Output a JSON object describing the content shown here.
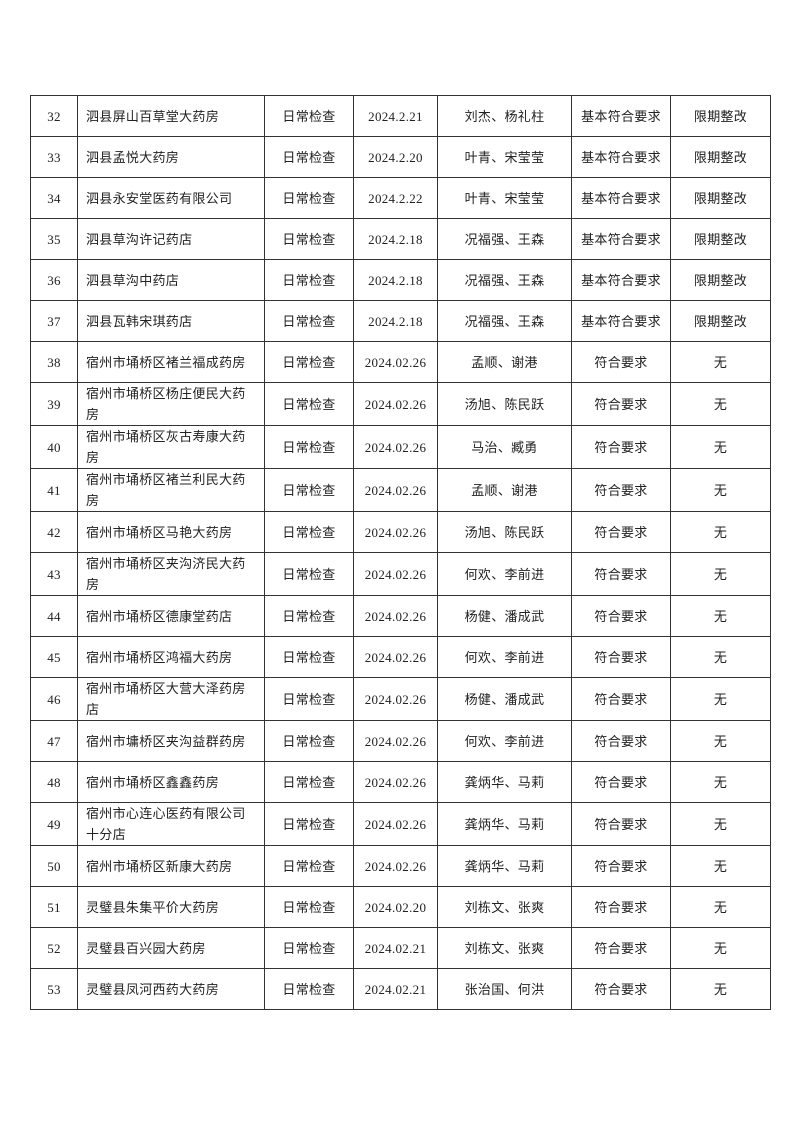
{
  "rows": [
    {
      "no": "32",
      "name": "泗县屏山百草堂大药房",
      "type": "日常检查",
      "date": "2024.2.21",
      "inspectors": "刘杰、杨礼柱",
      "result": "基本符合要求",
      "action": "限期整改"
    },
    {
      "no": "33",
      "name": "泗县孟悦大药房",
      "type": "日常检查",
      "date": "2024.2.20",
      "inspectors": "叶青、宋莹莹",
      "result": "基本符合要求",
      "action": "限期整改"
    },
    {
      "no": "34",
      "name": "泗县永安堂医药有限公司",
      "type": "日常检查",
      "date": "2024.2.22",
      "inspectors": "叶青、宋莹莹",
      "result": "基本符合要求",
      "action": "限期整改"
    },
    {
      "no": "35",
      "name": "泗县草沟许记药店",
      "type": "日常检查",
      "date": "2024.2.18",
      "inspectors": "况福强、王森",
      "result": "基本符合要求",
      "action": "限期整改"
    },
    {
      "no": "36",
      "name": "泗县草沟中药店",
      "type": "日常检查",
      "date": "2024.2.18",
      "inspectors": "况福强、王森",
      "result": "基本符合要求",
      "action": "限期整改"
    },
    {
      "no": "37",
      "name": "泗县瓦韩宋琪药店",
      "type": "日常检查",
      "date": "2024.2.18",
      "inspectors": "况福强、王森",
      "result": "基本符合要求",
      "action": "限期整改"
    },
    {
      "no": "38",
      "name": "宿州市埇桥区褚兰福成药房",
      "type": "日常检查",
      "date": "2024.02.26",
      "inspectors": "孟顺、谢港",
      "result": "符合要求",
      "action": "无"
    },
    {
      "no": "39",
      "name": "宿州市埇桥区杨庄便民大药房",
      "type": "日常检查",
      "date": "2024.02.26",
      "inspectors": "汤旭、陈民跃",
      "result": "符合要求",
      "action": "无"
    },
    {
      "no": "40",
      "name": "宿州市埇桥区灰古寿康大药房",
      "type": "日常检查",
      "date": "2024.02.26",
      "inspectors": "马治、臧勇",
      "result": "符合要求",
      "action": "无"
    },
    {
      "no": "41",
      "name": "宿州市埇桥区褚兰利民大药房",
      "type": "日常检查",
      "date": "2024.02.26",
      "inspectors": "孟顺、谢港",
      "result": "符合要求",
      "action": "无"
    },
    {
      "no": "42",
      "name": "宿州市埇桥区马艳大药房",
      "type": "日常检查",
      "date": "2024.02.26",
      "inspectors": "汤旭、陈民跃",
      "result": "符合要求",
      "action": "无"
    },
    {
      "no": "43",
      "name": "宿州市埇桥区夹沟济民大药房",
      "type": "日常检查",
      "date": "2024.02.26",
      "inspectors": "何欢、李前进",
      "result": "符合要求",
      "action": "无"
    },
    {
      "no": "44",
      "name": "宿州市埇桥区德康堂药店",
      "type": "日常检查",
      "date": "2024.02.26",
      "inspectors": "杨健、潘成武",
      "result": "符合要求",
      "action": "无"
    },
    {
      "no": "45",
      "name": "宿州市埇桥区鸿福大药房",
      "type": "日常检查",
      "date": "2024.02.26",
      "inspectors": "何欢、李前进",
      "result": "符合要求",
      "action": "无"
    },
    {
      "no": "46",
      "name": "宿州市埇桥区大营大泽药房店",
      "type": "日常检查",
      "date": "2024.02.26",
      "inspectors": "杨健、潘成武",
      "result": "符合要求",
      "action": "无"
    },
    {
      "no": "47",
      "name": "宿州市墉桥区夹沟益群药房",
      "type": "日常检查",
      "date": "2024.02.26",
      "inspectors": "何欢、李前进",
      "result": "符合要求",
      "action": "无"
    },
    {
      "no": "48",
      "name": "宿州市埇桥区鑫鑫药房",
      "type": "日常检查",
      "date": "2024.02.26",
      "inspectors": "龚炳华、马莉",
      "result": "符合要求",
      "action": "无"
    },
    {
      "no": "49",
      "name": "宿州市心连心医药有限公司十分店",
      "type": "日常检查",
      "date": "2024.02.26",
      "inspectors": "龚炳华、马莉",
      "result": "符合要求",
      "action": "无"
    },
    {
      "no": "50",
      "name": "宿州市埇桥区新康大药房",
      "type": "日常检查",
      "date": "2024.02.26",
      "inspectors": "龚炳华、马莉",
      "result": "符合要求",
      "action": "无"
    },
    {
      "no": "51",
      "name": "灵璧县朱集平价大药房",
      "type": "日常检查",
      "date": "2024.02.20",
      "inspectors": "刘栋文、张爽",
      "result": "符合要求",
      "action": "无"
    },
    {
      "no": "52",
      "name": "灵璧县百兴园大药房",
      "type": "日常检查",
      "date": "2024.02.21",
      "inspectors": "刘栋文、张爽",
      "result": "符合要求",
      "action": "无"
    },
    {
      "no": "53",
      "name": "灵璧县凤河西药大药房",
      "type": "日常检查",
      "date": "2024.02.21",
      "inspectors": "张治国、何洪",
      "result": "符合要求",
      "action": "无"
    }
  ]
}
